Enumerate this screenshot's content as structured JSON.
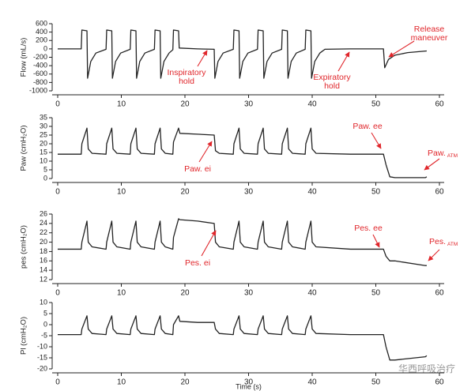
{
  "chart_data": [
    {
      "type": "line",
      "y_label": "Flow (mL/s)",
      "x": [
        0,
        3.7,
        3.8,
        4.6,
        4.7,
        5.2,
        6,
        7.6,
        7.7,
        8.5,
        8.6,
        9.1,
        9.9,
        11.4,
        11.5,
        12.3,
        12.4,
        12.9,
        13.7,
        15.2,
        15.3,
        16.1,
        16.2,
        16.7,
        17.5,
        18.1,
        18.2,
        19,
        19.1,
        22,
        24.6,
        24.7,
        25.2,
        26,
        27.6,
        27.7,
        28.5,
        28.6,
        29.1,
        29.9,
        31.4,
        31.5,
        32.3,
        32.4,
        32.9,
        33.7,
        35.2,
        35.3,
        36.1,
        36.2,
        36.7,
        37.5,
        38.9,
        39,
        39.8,
        39.9,
        40.4,
        41.2,
        42,
        46,
        51.2,
        51.4,
        52,
        53,
        55,
        58
      ],
      "series": [
        {
          "color": "#222222",
          "values": [
            0,
            0,
            450,
            430,
            -700,
            -300,
            -100,
            -10,
            450,
            430,
            -700,
            -300,
            -100,
            -10,
            450,
            430,
            -700,
            -300,
            -100,
            -10,
            450,
            430,
            -700,
            -300,
            -100,
            -20,
            450,
            430,
            20,
            0,
            -10,
            -700,
            -300,
            -100,
            -10,
            450,
            430,
            -700,
            -300,
            -100,
            -10,
            450,
            430,
            -700,
            -300,
            -100,
            -10,
            450,
            430,
            -700,
            -300,
            -100,
            -10,
            450,
            430,
            -700,
            -300,
            -100,
            -10,
            0,
            0,
            -450,
            -250,
            -150,
            -90,
            -50
          ]
        }
      ],
      "xlim": [
        0,
        60
      ],
      "xticks": [
        0,
        10,
        20,
        30,
        40,
        50,
        60
      ],
      "ylim": [
        -1000,
        600
      ],
      "yticks": [
        -1000,
        -800,
        -600,
        -400,
        -200,
        0,
        200,
        400,
        600
      ],
      "annotations": [
        {
          "lines": [
            "Inspiratory",
            "hold"
          ]
        },
        {
          "lines": [
            "Expiratory",
            "hold"
          ]
        },
        {
          "lines": [
            "Release",
            "maneuver"
          ]
        }
      ]
    },
    {
      "type": "line",
      "y_label": "Paw (cmH₂O)",
      "x": [
        0,
        3.7,
        3.8,
        4.6,
        4.8,
        5.4,
        7.6,
        7.7,
        8.5,
        8.7,
        9.3,
        11.4,
        11.5,
        12.3,
        12.5,
        13.1,
        15.2,
        15.3,
        16.1,
        16.3,
        16.9,
        18.1,
        18.2,
        19,
        19.2,
        22,
        24.6,
        24.8,
        25.4,
        27.6,
        27.7,
        28.5,
        28.7,
        29.3,
        31.4,
        31.5,
        32.3,
        32.5,
        33.1,
        35.2,
        35.3,
        36.1,
        36.3,
        36.9,
        38.9,
        39,
        39.8,
        40,
        40.6,
        46,
        51.2,
        51.6,
        52.2,
        53,
        57.8,
        58
      ],
      "series": [
        {
          "color": "#222222",
          "values": [
            14,
            14,
            20,
            29,
            17,
            14.5,
            14,
            20,
            29,
            17,
            14.5,
            14,
            20,
            29,
            17,
            14.5,
            14,
            20,
            29,
            17,
            14.5,
            14,
            21,
            29,
            26,
            25.5,
            25,
            16,
            14.5,
            14,
            20,
            29,
            17,
            14.5,
            14,
            20,
            29,
            17,
            14.5,
            14,
            20,
            29,
            17,
            14.5,
            14,
            20,
            29,
            17,
            14.5,
            14,
            14,
            8,
            1,
            0.5,
            0.5,
            1
          ]
        }
      ],
      "xlim": [
        0,
        60
      ],
      "xticks": [
        0,
        10,
        20,
        30,
        40,
        50,
        60
      ],
      "ylim": [
        0,
        35
      ],
      "yticks": [
        0,
        5,
        10,
        15,
        20,
        25,
        30,
        35
      ],
      "annotations": [
        {
          "text": "Paw. ei"
        },
        {
          "text": "Paw. ee"
        },
        {
          "text": "Paw.",
          "sub": "ATM"
        }
      ]
    },
    {
      "type": "line",
      "y_label": "pes (cmH₂O)",
      "x": [
        0,
        3.7,
        3.8,
        4.6,
        4.8,
        5.4,
        7.6,
        7.7,
        8.5,
        8.7,
        9.3,
        11.4,
        11.5,
        12.3,
        12.5,
        13.1,
        15.2,
        15.3,
        16.1,
        16.3,
        16.9,
        18.1,
        18.2,
        19,
        19.2,
        22,
        24.6,
        24.8,
        25.4,
        27.6,
        27.7,
        28.5,
        28.7,
        29.3,
        31.4,
        31.5,
        32.3,
        32.5,
        33.1,
        35.2,
        35.3,
        36.1,
        36.3,
        36.9,
        38.9,
        39,
        39.8,
        40,
        40.6,
        46,
        51.2,
        51.6,
        52.2,
        53,
        57.8,
        58
      ],
      "series": [
        {
          "color": "#222222",
          "values": [
            18.5,
            18.5,
            20,
            24.5,
            20,
            19,
            18.5,
            20,
            24.5,
            20,
            19,
            18.5,
            20,
            24.5,
            20,
            19,
            18.5,
            20,
            24.5,
            20,
            19,
            18.5,
            21,
            25,
            24.8,
            24.5,
            24,
            20,
            19,
            18.5,
            20,
            24.5,
            20,
            19,
            18.5,
            20,
            24.5,
            20,
            19,
            18.5,
            20,
            24.5,
            20,
            19,
            18.5,
            20,
            24.5,
            20,
            19,
            18.5,
            18.5,
            17,
            16,
            16,
            15,
            15
          ]
        }
      ],
      "xlim": [
        0,
        60
      ],
      "xticks": [
        0,
        10,
        20,
        30,
        40,
        50,
        60
      ],
      "ylim": [
        12,
        26
      ],
      "yticks": [
        12,
        14,
        16,
        18,
        20,
        22,
        24,
        26
      ],
      "annotations": [
        {
          "text": "Pes. ei"
        },
        {
          "text": "Pes. ee"
        },
        {
          "text": "Pes.",
          "sub": "ATM"
        }
      ]
    },
    {
      "type": "line",
      "y_label": "Pl (cmH₂O)",
      "x_label": "Time (s)",
      "x": [
        0,
        3.7,
        3.8,
        4.6,
        4.8,
        5.4,
        7.6,
        7.7,
        8.5,
        8.7,
        9.3,
        11.4,
        11.5,
        12.3,
        12.5,
        13.1,
        15.2,
        15.3,
        16.1,
        16.3,
        16.9,
        18.1,
        18.2,
        19,
        19.2,
        22,
        24.6,
        24.8,
        25.4,
        27.6,
        27.7,
        28.5,
        28.7,
        29.3,
        31.4,
        31.5,
        32.3,
        32.5,
        33.1,
        35.2,
        35.3,
        36.1,
        36.3,
        36.9,
        38.9,
        39,
        39.8,
        40,
        40.6,
        46,
        51.2,
        51.6,
        52.2,
        53,
        57.8,
        58
      ],
      "series": [
        {
          "color": "#222222",
          "values": [
            -4.5,
            -4.5,
            -2,
            4,
            -2,
            -4,
            -4.5,
            -2,
            4,
            -2,
            -4,
            -4.5,
            -2,
            4,
            -2,
            -4,
            -4.5,
            -2,
            4,
            -2,
            -4,
            -4.5,
            0,
            4,
            1.5,
            1,
            1,
            -2,
            -4,
            -4.5,
            -2,
            4,
            -2,
            -4,
            -4.5,
            -2,
            4,
            -2,
            -4,
            -4.5,
            -2,
            4,
            -2,
            -4,
            -4.5,
            -2,
            4,
            -2,
            -4,
            -4.5,
            -4.5,
            -10,
            -16,
            -16,
            -14.5,
            -14
          ]
        }
      ],
      "xlim": [
        0,
        60
      ],
      "xticks": [
        0,
        10,
        20,
        30,
        40,
        50,
        60
      ],
      "ylim": [
        -20,
        10
      ],
      "yticks": [
        -20,
        -15,
        -10,
        -5,
        0,
        5,
        10
      ]
    }
  ],
  "watermark": "华西呼吸治疗"
}
